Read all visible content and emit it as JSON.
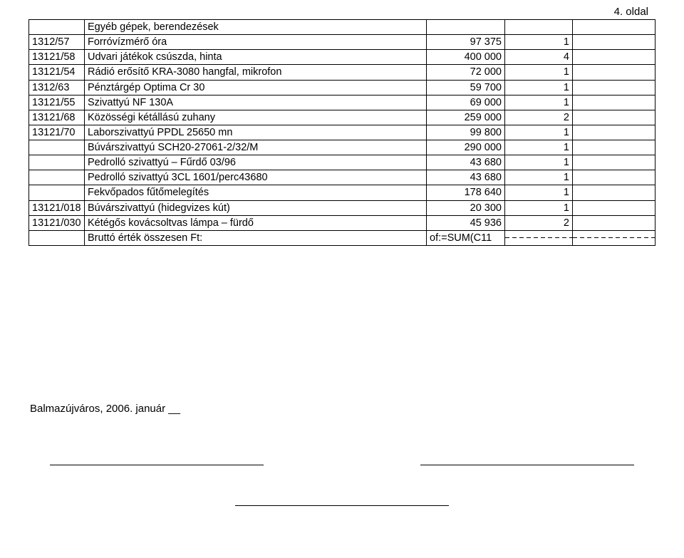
{
  "page_label": "4. oldal",
  "section_heading": "Egyéb gépek, berendezések",
  "rows": [
    {
      "code": "1312/57",
      "desc": "Forróvízmérő óra",
      "value": "97 375",
      "qty": "1"
    },
    {
      "code": "13121/58",
      "desc": "Udvari játékok csúszda, hinta",
      "value": "400 000",
      "qty": "4"
    },
    {
      "code": "13121/54",
      "desc": "Rádió erősítő KRA-3080 hangfal, mikrofon",
      "value": "72 000",
      "qty": "1"
    },
    {
      "code": "1312/63",
      "desc": "Pénztárgép Optima Cr 30",
      "value": "59 700",
      "qty": "1"
    },
    {
      "code": "13121/55",
      "desc": "Szivattyú NF 130A",
      "value": "69 000",
      "qty": "1"
    },
    {
      "code": "13121/68",
      "desc": "Közösségi kétállású zuhany",
      "value": "259 000",
      "qty": "2"
    },
    {
      "code": "13121/70",
      "desc": "Laborszivattyú PPDL 25650 mn",
      "value": "99 800",
      "qty": "1"
    },
    {
      "code": "",
      "desc": "Búvárszivattyú SCH20-27061-2/32/M",
      "value": "290 000",
      "qty": "1"
    },
    {
      "code": "",
      "desc": "Pedrolló szivattyú – Fűrdő 03/96",
      "value": "43 680",
      "qty": "1"
    },
    {
      "code": "",
      "desc": "Pedrolló szivattyú 3CL 1601/perc43680",
      "value": "43 680",
      "qty": "1"
    },
    {
      "code": "",
      "desc": "Fekvőpados fűtőmelegítés",
      "value": "178 640",
      "qty": "1"
    },
    {
      "code": "13121/018",
      "desc": "Búvárszivattyú (hidegvizes kút)",
      "value": "20 300",
      "qty": "1"
    },
    {
      "code": "13121/030",
      "desc": "Kétégős kovácsoltvas lámpa – fürdő",
      "value": "45 936",
      "qty": "2"
    }
  ],
  "total_row": {
    "label": "Bruttó érték összesen Ft:",
    "value": "of:=SUM(C11"
  },
  "footer": "Balmazújváros, 2006. január __",
  "colors": {
    "text": "#000000",
    "bg": "#ffffff",
    "border": "#000000"
  }
}
